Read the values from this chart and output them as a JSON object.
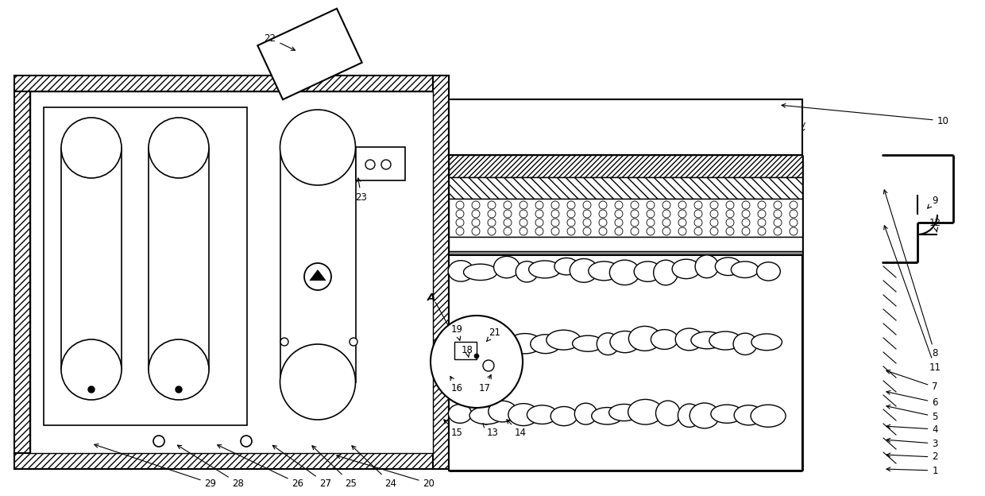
{
  "bg_color": "#ffffff",
  "line_color": "#000000",
  "fig_width": 12.4,
  "fig_height": 6.24,
  "dpi": 100
}
